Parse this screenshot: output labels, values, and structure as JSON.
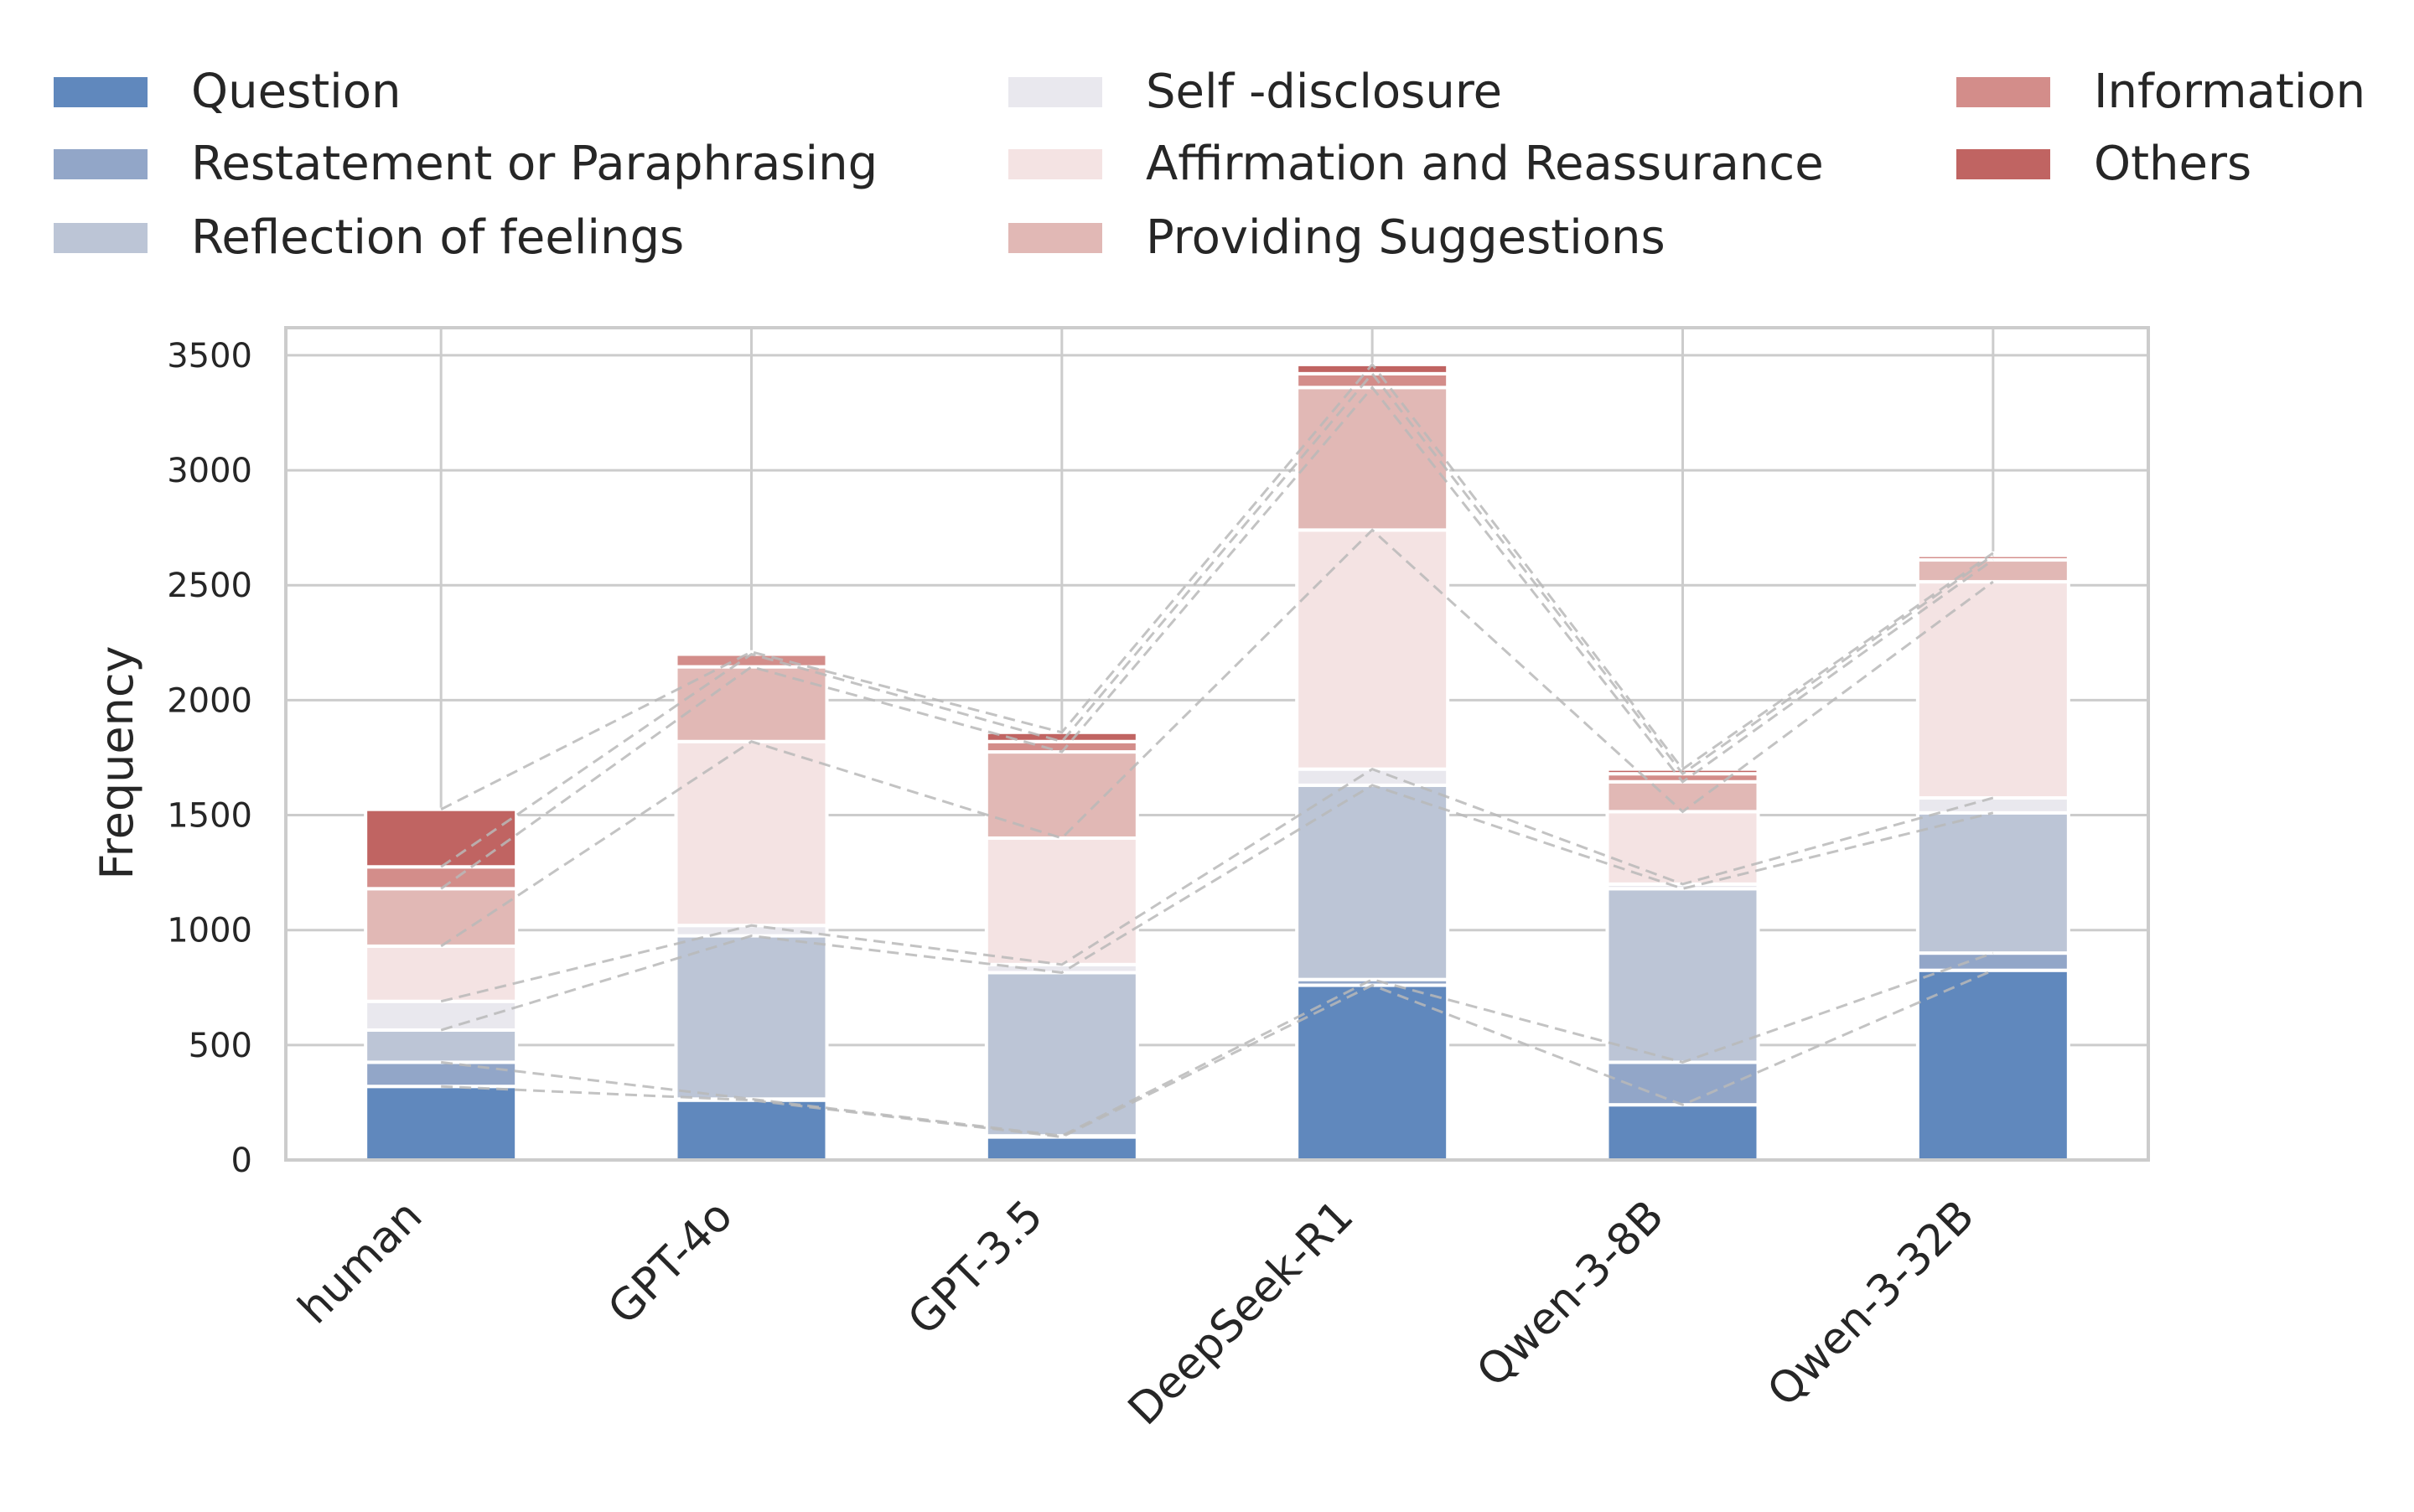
{
  "chart_data": {
    "type": "bar",
    "stacked": true,
    "title": "",
    "xlabel": "",
    "ylabel": "Frequency",
    "ylim": [
      0,
      3620
    ],
    "yticks": [
      0,
      500,
      1000,
      1500,
      2000,
      2500,
      3000,
      3500
    ],
    "grid": true,
    "legend_position": "top",
    "categories": [
      "human",
      "GPT-4o",
      "GPT-3.5",
      "DeepSeek-R1",
      "Qwen-3-8B",
      "Qwen-3-32B"
    ],
    "series": [
      {
        "name": "Question",
        "color": "#6088bd",
        "values": [
          320,
          260,
          100,
          760,
          240,
          825
        ]
      },
      {
        "name": "Restatement or Paraphrasing",
        "color": "#92a6c8",
        "values": [
          105,
          5,
          5,
          25,
          185,
          75
        ]
      },
      {
        "name": "Reflection of feelings",
        "color": "#bcc5d6",
        "values": [
          140,
          710,
          710,
          845,
          755,
          610
        ]
      },
      {
        "name": "Self -disclosure",
        "color": "#e9e8ee",
        "values": [
          125,
          45,
          35,
          70,
          20,
          65
        ]
      },
      {
        "name": "Affirmation and Reassurance",
        "color": "#f4e3e3",
        "values": [
          240,
          800,
          550,
          1040,
          315,
          940
        ]
      },
      {
        "name": "Providing Suggestions",
        "color": "#e1b8b5",
        "values": [
          250,
          325,
          375,
          620,
          130,
          95
        ]
      },
      {
        "name": "Information",
        "color": "#d38d8a",
        "values": [
          95,
          55,
          45,
          60,
          35,
          20
        ]
      },
      {
        "name": "Others",
        "color": "#c06462",
        "values": [
          250,
          10,
          40,
          40,
          20,
          10
        ]
      }
    ]
  }
}
